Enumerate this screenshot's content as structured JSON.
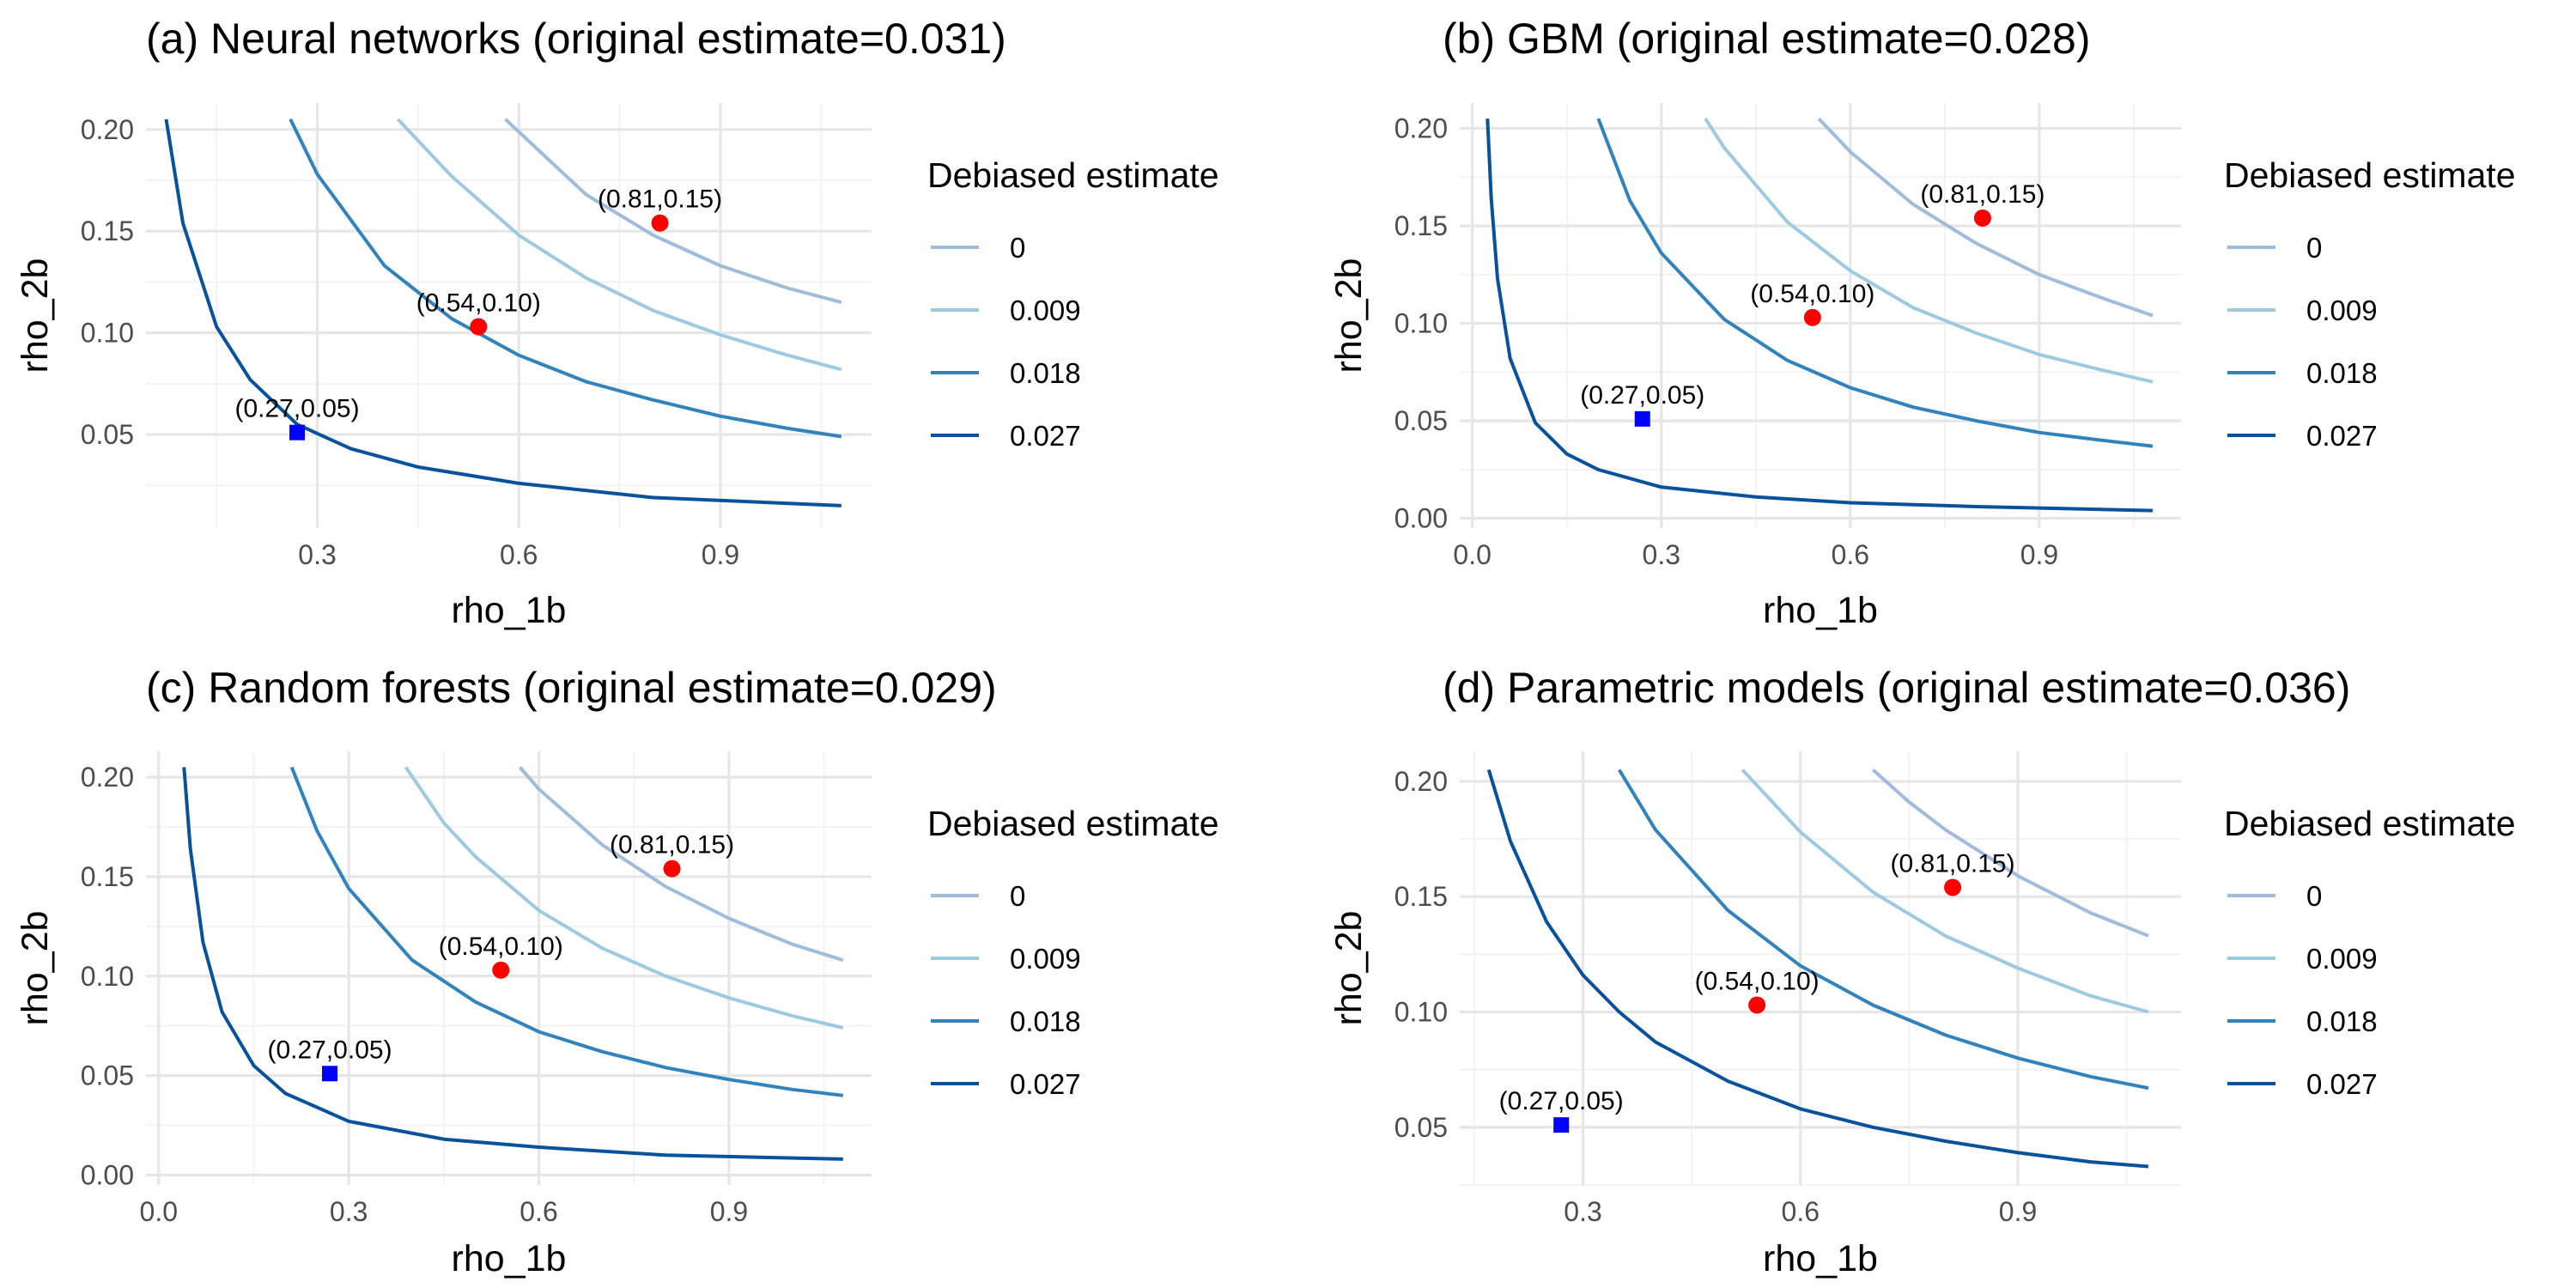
{
  "chart_data": [
    {
      "type": "line",
      "title": "(a) Neural networks (original estimate=0.031)",
      "xlabel": "rho_1b",
      "ylabel": "rho_2b",
      "xlim": [
        0.045,
        1.125
      ],
      "ylim": [
        0.004,
        0.213
      ],
      "xticks": [
        0.3,
        0.6,
        0.9
      ],
      "xtick_labels": [
        "0.3",
        "0.6",
        "0.9"
      ],
      "yticks": [
        0.05,
        0.1,
        0.15,
        0.2
      ],
      "ytick_labels": [
        "0.05",
        "0.10",
        "0.15",
        "0.20"
      ],
      "legend_title": "Debiased estimate",
      "series": [
        {
          "name": "0",
          "color": "#9ecae1",
          "color_hex": "#a0bcdc",
          "x": [
            0.58,
            0.7,
            0.8,
            0.9,
            1.0,
            1.08
          ],
          "y": [
            0.205,
            0.168,
            0.148,
            0.133,
            0.122,
            0.115
          ]
        },
        {
          "name": "0.009",
          "color_hex": "#9ecae1",
          "x": [
            0.42,
            0.5,
            0.6,
            0.7,
            0.8,
            0.9,
            1.0,
            1.08
          ],
          "y": [
            0.205,
            0.177,
            0.148,
            0.127,
            0.111,
            0.099,
            0.089,
            0.082
          ]
        },
        {
          "name": "0.018",
          "color_hex": "#3182bd",
          "x": [
            0.26,
            0.3,
            0.4,
            0.5,
            0.6,
            0.7,
            0.8,
            0.9,
            1.0,
            1.08
          ],
          "y": [
            0.205,
            0.178,
            0.133,
            0.107,
            0.089,
            0.076,
            0.067,
            0.059,
            0.053,
            0.049
          ]
        },
        {
          "name": "0.027",
          "color_hex": "#08519c",
          "x": [
            0.075,
            0.1,
            0.15,
            0.2,
            0.27,
            0.35,
            0.45,
            0.6,
            0.8,
            1.08
          ],
          "y": [
            0.205,
            0.154,
            0.103,
            0.077,
            0.055,
            0.043,
            0.034,
            0.026,
            0.019,
            0.015
          ]
        }
      ],
      "points": [
        {
          "label": "(0.81,0.15)",
          "x": 0.81,
          "y": 0.154,
          "marker": "circle",
          "color": "#ff0000"
        },
        {
          "label": "(0.54,0.10)",
          "x": 0.54,
          "y": 0.103,
          "marker": "circle",
          "color": "#ff0000"
        },
        {
          "label": "(0.27,0.05)",
          "x": 0.27,
          "y": 0.051,
          "marker": "square",
          "color": "#0000ff"
        }
      ]
    },
    {
      "type": "line",
      "title": "(b) GBM (original estimate=0.028)",
      "xlabel": "rho_1b",
      "ylabel": "rho_2b",
      "xlim": [
        -0.02,
        1.125
      ],
      "ylim": [
        -0.005,
        0.213
      ],
      "xticks": [
        0.0,
        0.3,
        0.6,
        0.9
      ],
      "xtick_labels": [
        "0.0",
        "0.3",
        "0.6",
        "0.9"
      ],
      "yticks": [
        0.0,
        0.05,
        0.1,
        0.15,
        0.2
      ],
      "ytick_labels": [
        "0.00",
        "0.05",
        "0.10",
        "0.15",
        "0.20"
      ],
      "legend_title": "Debiased estimate",
      "series": [
        {
          "name": "0",
          "color_hex": "#a0bcdc",
          "x": [
            0.55,
            0.6,
            0.7,
            0.8,
            0.9,
            1.0,
            1.08
          ],
          "y": [
            0.205,
            0.188,
            0.161,
            0.141,
            0.125,
            0.113,
            0.104
          ]
        },
        {
          "name": "0.009",
          "color_hex": "#9ecae1",
          "x": [
            0.37,
            0.4,
            0.5,
            0.6,
            0.7,
            0.8,
            0.9,
            1.0,
            1.08
          ],
          "y": [
            0.205,
            0.19,
            0.152,
            0.127,
            0.108,
            0.095,
            0.084,
            0.076,
            0.07
          ]
        },
        {
          "name": "0.018",
          "color_hex": "#3182bd",
          "x": [
            0.2,
            0.25,
            0.3,
            0.4,
            0.5,
            0.6,
            0.7,
            0.8,
            0.9,
            1.0,
            1.08
          ],
          "y": [
            0.205,
            0.163,
            0.136,
            0.102,
            0.081,
            0.067,
            0.057,
            0.05,
            0.044,
            0.04,
            0.037
          ]
        },
        {
          "name": "0.027",
          "color_hex": "#08519c",
          "x": [
            0.024,
            0.03,
            0.04,
            0.06,
            0.1,
            0.15,
            0.2,
            0.3,
            0.45,
            0.6,
            0.8,
            1.08
          ],
          "y": [
            0.205,
            0.164,
            0.123,
            0.082,
            0.049,
            0.033,
            0.025,
            0.016,
            0.011,
            0.008,
            0.006,
            0.004
          ]
        }
      ],
      "points": [
        {
          "label": "(0.81,0.15)",
          "x": 0.81,
          "y": 0.154,
          "marker": "circle",
          "color": "#ff0000"
        },
        {
          "label": "(0.54,0.10)",
          "x": 0.54,
          "y": 0.103,
          "marker": "circle",
          "color": "#ff0000"
        },
        {
          "label": "(0.27,0.05)",
          "x": 0.27,
          "y": 0.051,
          "marker": "square",
          "color": "#0000ff"
        }
      ]
    },
    {
      "type": "line",
      "title": "(c) Random forests (original estimate=0.029)",
      "xlabel": "rho_1b",
      "ylabel": "rho_2b",
      "xlim": [
        -0.02,
        1.125
      ],
      "ylim": [
        -0.005,
        0.213
      ],
      "xticks": [
        0.0,
        0.3,
        0.6,
        0.9
      ],
      "xtick_labels": [
        "0.0",
        "0.3",
        "0.6",
        "0.9"
      ],
      "yticks": [
        0.0,
        0.05,
        0.1,
        0.15,
        0.2
      ],
      "ytick_labels": [
        "0.00",
        "0.05",
        "0.10",
        "0.15",
        "0.20"
      ],
      "legend_title": "Debiased estimate",
      "series": [
        {
          "name": "0",
          "color_hex": "#a0bcdc",
          "x": [
            0.57,
            0.6,
            0.7,
            0.8,
            0.9,
            1.0,
            1.08
          ],
          "y": [
            0.205,
            0.194,
            0.166,
            0.145,
            0.129,
            0.116,
            0.108
          ]
        },
        {
          "name": "0.009",
          "color_hex": "#9ecae1",
          "x": [
            0.39,
            0.45,
            0.5,
            0.6,
            0.7,
            0.8,
            0.9,
            1.0,
            1.08
          ],
          "y": [
            0.205,
            0.177,
            0.16,
            0.133,
            0.114,
            0.1,
            0.089,
            0.08,
            0.074
          ]
        },
        {
          "name": "0.018",
          "color_hex": "#3182bd",
          "x": [
            0.21,
            0.25,
            0.3,
            0.4,
            0.5,
            0.6,
            0.7,
            0.8,
            0.9,
            1.0,
            1.08
          ],
          "y": [
            0.205,
            0.173,
            0.144,
            0.108,
            0.087,
            0.072,
            0.062,
            0.054,
            0.048,
            0.043,
            0.04
          ]
        },
        {
          "name": "0.027",
          "color_hex": "#08519c",
          "x": [
            0.04,
            0.05,
            0.07,
            0.1,
            0.15,
            0.2,
            0.3,
            0.45,
            0.6,
            0.8,
            1.08
          ],
          "y": [
            0.205,
            0.164,
            0.117,
            0.082,
            0.055,
            0.041,
            0.027,
            0.018,
            0.014,
            0.01,
            0.008
          ]
        }
      ],
      "points": [
        {
          "label": "(0.81,0.15)",
          "x": 0.81,
          "y": 0.154,
          "marker": "circle",
          "color": "#ff0000"
        },
        {
          "label": "(0.54,0.10)",
          "x": 0.54,
          "y": 0.103,
          "marker": "circle",
          "color": "#ff0000"
        },
        {
          "label": "(0.27,0.05)",
          "x": 0.27,
          "y": 0.051,
          "marker": "square",
          "color": "#0000ff"
        }
      ]
    },
    {
      "type": "line",
      "title": "(d) Parametric models (original estimate=0.036)",
      "xlabel": "rho_1b",
      "ylabel": "rho_2b",
      "xlim": [
        0.13,
        1.125
      ],
      "ylim": [
        0.025,
        0.213
      ],
      "xticks": [
        0.3,
        0.6,
        0.9
      ],
      "xtick_labels": [
        "0.3",
        "0.6",
        "0.9"
      ],
      "yticks": [
        0.05,
        0.1,
        0.15,
        0.2
      ],
      "ytick_labels": [
        "0.05",
        "0.10",
        "0.15",
        "0.20"
      ],
      "legend_title": "Debiased estimate",
      "series": [
        {
          "name": "0",
          "color_hex": "#a0bcdc",
          "x": [
            0.7,
            0.75,
            0.8,
            0.9,
            1.0,
            1.08
          ],
          "y": [
            0.205,
            0.191,
            0.179,
            0.159,
            0.143,
            0.133
          ]
        },
        {
          "name": "0.009",
          "color_hex": "#9ecae1",
          "x": [
            0.52,
            0.6,
            0.7,
            0.8,
            0.9,
            1.0,
            1.08
          ],
          "y": [
            0.205,
            0.178,
            0.152,
            0.133,
            0.119,
            0.107,
            0.1
          ]
        },
        {
          "name": "0.018",
          "color_hex": "#3182bd",
          "x": [
            0.35,
            0.4,
            0.5,
            0.6,
            0.7,
            0.8,
            0.9,
            1.0,
            1.08
          ],
          "y": [
            0.205,
            0.179,
            0.144,
            0.12,
            0.103,
            0.09,
            0.08,
            0.072,
            0.067
          ]
        },
        {
          "name": "0.027",
          "color_hex": "#08519c",
          "x": [
            0.17,
            0.2,
            0.25,
            0.3,
            0.35,
            0.4,
            0.5,
            0.6,
            0.7,
            0.8,
            0.9,
            1.0,
            1.08
          ],
          "y": [
            0.205,
            0.174,
            0.139,
            0.116,
            0.1,
            0.087,
            0.07,
            0.058,
            0.05,
            0.044,
            0.039,
            0.035,
            0.033
          ]
        }
      ],
      "points": [
        {
          "label": "(0.81,0.15)",
          "x": 0.81,
          "y": 0.154,
          "marker": "circle",
          "color": "#ff0000"
        },
        {
          "label": "(0.54,0.10)",
          "x": 0.54,
          "y": 0.103,
          "marker": "circle",
          "color": "#ff0000"
        },
        {
          "label": "(0.27,0.05)",
          "x": 0.27,
          "y": 0.051,
          "marker": "square",
          "color": "#0000ff"
        }
      ]
    }
  ]
}
